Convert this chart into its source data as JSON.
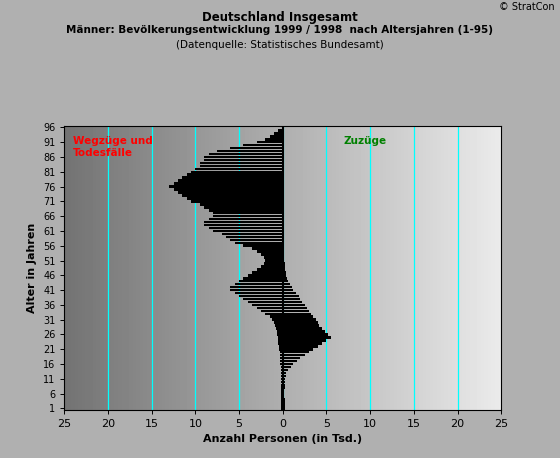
{
  "title_main": "Deutschland Insgesamt",
  "title_sub1": "Männer: Bevölkerungsentwicklung 1999 / 1998  nach Altersjahren (1-95)",
  "title_sub2": "(Datenquelle: Statistisches Bundesamt)",
  "copyright": "© StratCon",
  "xlabel": "Anzahl Personen (in Tsd.)",
  "ylabel": "Alter in Jahren",
  "label_wegzuege": "Wegzüge und\nTodesfälle",
  "label_zugzuege": "Zuzüge",
  "xlim": [
    -25,
    25
  ],
  "ylim": [
    0.5,
    96.5
  ],
  "yticks": [
    1,
    6,
    11,
    16,
    21,
    26,
    31,
    36,
    41,
    46,
    51,
    56,
    61,
    66,
    71,
    76,
    81,
    86,
    91,
    96
  ],
  "xticks": [
    -25,
    -20,
    -15,
    -10,
    -5,
    0,
    5,
    10,
    15,
    20,
    25
  ],
  "xticklabels": [
    "25",
    "20",
    "15",
    "10",
    "5",
    "0",
    "5",
    "10",
    "15",
    "20",
    "25"
  ],
  "vlines_cyan": [
    -20,
    -15,
    -10,
    -5,
    0,
    5,
    10,
    15,
    20
  ],
  "bar_color": "#000000",
  "left_vals": [
    0.2,
    0.18,
    0.17,
    0.16,
    0.15,
    0.15,
    0.15,
    0.16,
    0.17,
    0.18,
    0.19,
    0.2,
    0.22,
    0.24,
    0.26,
    0.28,
    0.3,
    0.32,
    0.34,
    0.36,
    0.4,
    0.45,
    0.5,
    0.55,
    0.6,
    0.65,
    0.7,
    0.8,
    0.9,
    1.0,
    1.2,
    1.5,
    2.0,
    2.5,
    3.0,
    3.5,
    4.0,
    4.5,
    5.0,
    5.5,
    6.0,
    6.0,
    5.5,
    5.0,
    4.5,
    4.0,
    3.5,
    3.0,
    2.5,
    2.2,
    2.0,
    2.2,
    2.5,
    3.0,
    3.5,
    4.5,
    5.5,
    6.0,
    6.5,
    7.0,
    8.0,
    8.5,
    9.0,
    9.0,
    8.5,
    8.0,
    8.0,
    8.5,
    9.0,
    9.5,
    10.5,
    11.0,
    11.5,
    12.0,
    12.5,
    13.0,
    12.5,
    12.0,
    11.5,
    11.0,
    10.5,
    10.0,
    9.5,
    9.5,
    9.0,
    9.0,
    8.5,
    7.5,
    6.0,
    4.5,
    3.0,
    2.0,
    1.5,
    1.0,
    0.5
  ],
  "right_vals": [
    0.3,
    0.25,
    0.22,
    0.2,
    0.18,
    0.18,
    0.18,
    0.2,
    0.22,
    0.25,
    0.3,
    0.35,
    0.4,
    0.6,
    0.9,
    1.2,
    1.6,
    2.0,
    2.5,
    3.0,
    3.5,
    4.0,
    4.5,
    5.0,
    5.5,
    5.2,
    4.8,
    4.5,
    4.2,
    4.0,
    3.8,
    3.5,
    3.2,
    3.0,
    2.8,
    2.5,
    2.2,
    2.0,
    1.8,
    1.5,
    1.2,
    1.0,
    0.8,
    0.6,
    0.5,
    0.4,
    0.35,
    0.3,
    0.25,
    0.2,
    0.15,
    0.12,
    0.1,
    0.1,
    0.08,
    0.08,
    0.07,
    0.07,
    0.06,
    0.06,
    0.05,
    0.05,
    0.05,
    0.05,
    0.05,
    0.05,
    0.05,
    0.05,
    0.05,
    0.05,
    0.05,
    0.05,
    0.05,
    0.05,
    0.05,
    0.05,
    0.05,
    0.05,
    0.05,
    0.05,
    0.05,
    0.05,
    0.05,
    0.05,
    0.05,
    0.05,
    0.05,
    0.05,
    0.05,
    0.05,
    0.04,
    0.03,
    0.02,
    0.01,
    0.01
  ]
}
